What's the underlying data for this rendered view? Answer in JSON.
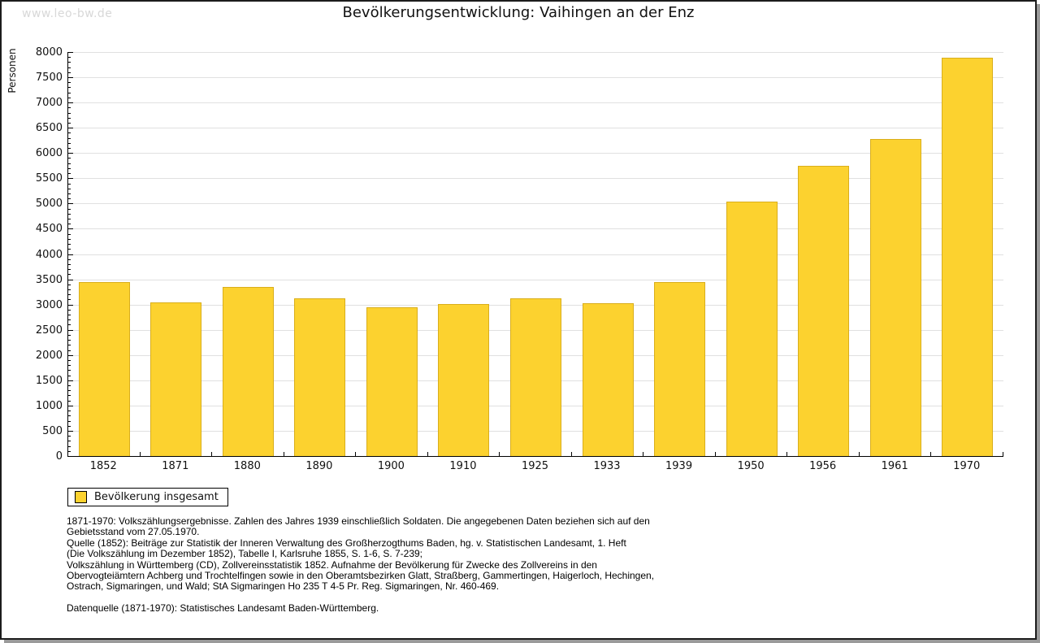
{
  "watermark": "www.leo-bw.de",
  "title": "Bevölkerungsentwicklung: Vaihingen an der Enz",
  "colors": {
    "bar": "#fcd22f",
    "bar_outline": "#d9ae1c",
    "grid": "#e0e0e0",
    "axis": "#000000",
    "watermark": "#d8d8d8"
  },
  "chart_data": {
    "type": "bar",
    "title": "Bevölkerungsentwicklung: Vaihingen an der Enz",
    "xlabel": "",
    "ylabel": "Personen",
    "categories": [
      "1852",
      "1871",
      "1880",
      "1890",
      "1900",
      "1910",
      "1925",
      "1933",
      "1939",
      "1950",
      "1956",
      "1961",
      "1970"
    ],
    "series": [
      {
        "name": "Bevölkerung insgesamt",
        "values": [
          3440,
          3050,
          3350,
          3130,
          2940,
          3010,
          3120,
          3030,
          3450,
          5040,
          5750,
          6270,
          7890
        ]
      }
    ],
    "ylim": [
      0,
      8000
    ],
    "ytick_step": 500,
    "yminor_tick_step": 100,
    "grid": true,
    "legend_position": "bottom-left"
  },
  "legend": {
    "items": [
      {
        "label": "Bevölkerung insgesamt",
        "color": "#fcd22f"
      }
    ]
  },
  "footnote": {
    "lines": [
      "1871-1970: Volkszählungsergebnisse. Zahlen des Jahres 1939 einschließlich Soldaten. Die angegebenen Daten beziehen sich auf den",
      "Gebietsstand vom 27.05.1970.",
      "Quelle (1852): Beiträge zur Statistik der Inneren Verwaltung des Großherzogthums Baden, hg. v. Statistischen Landesamt, 1. Heft",
      "(Die Volkszählung im Dezember 1852), Tabelle I, Karlsruhe 1855, S. 1-6, S. 7-239;",
      "Volkszählung in Württemberg (CD), Zollvereinsstatistik 1852. Aufnahme der Bevölkerung für Zwecke des Zollvereins in den",
      "Obervogteiämtern Achberg und Trochtelfingen sowie in den Oberamtsbezirken Glatt, Straßberg, Gammertingen, Haigerloch, Hechingen,",
      "Ostrach, Sigmaringen, und Wald; StA Sigmaringen Ho 235 T 4-5 Pr. Reg. Sigmaringen, Nr. 460-469."
    ],
    "source_line": "Datenquelle (1871-1970): Statistisches Landesamt Baden-Württemberg."
  }
}
